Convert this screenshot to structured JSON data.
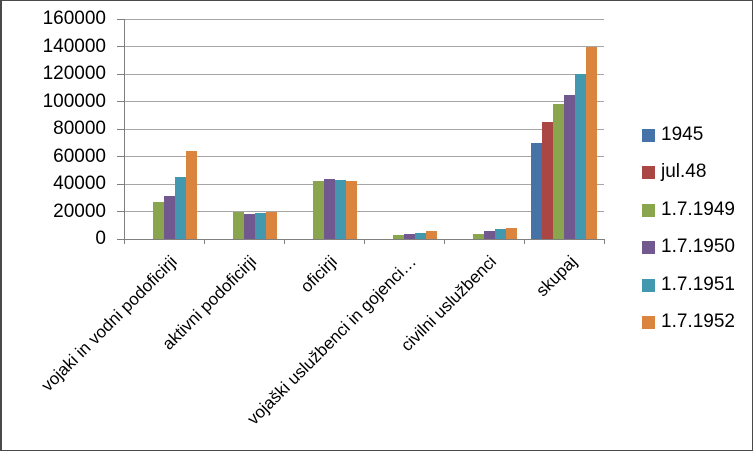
{
  "figure": {
    "background": "#ffffff",
    "border_color": "#4a4a4a"
  },
  "chart_data": {
    "type": "bar",
    "title": "",
    "categories": [
      "vojaki in vodni podoficirji",
      "aktivni podoficirji",
      "oficirji",
      "vojaški uslužbenci in gojenci…",
      "civilni uslužbenci",
      "skupaj"
    ],
    "series": [
      {
        "name": "1945",
        "color": "#4572A7",
        "values": [
          0,
          0,
          0,
          0,
          0,
          70000
        ]
      },
      {
        "name": "jul.48",
        "color": "#AA4643",
        "values": [
          0,
          0,
          0,
          0,
          0,
          85000
        ]
      },
      {
        "name": "1.7.1949",
        "color": "#89A54E",
        "values": [
          27000,
          20000,
          42000,
          3000,
          4000,
          98000
        ]
      },
      {
        "name": "1.7.1950",
        "color": "#71588F",
        "values": [
          31000,
          18000,
          44000,
          3500,
          6000,
          105000
        ]
      },
      {
        "name": "1.7.1951",
        "color": "#4198AF",
        "values": [
          45000,
          19000,
          43000,
          4500,
          7500,
          120000
        ]
      },
      {
        "name": "1.7.1952",
        "color": "#DB843D",
        "values": [
          64000,
          20000,
          42000,
          6000,
          8000,
          140000
        ]
      }
    ],
    "ylim": [
      0,
      160000
    ],
    "yticks": [
      0,
      20000,
      40000,
      60000,
      80000,
      100000,
      120000,
      140000,
      160000
    ],
    "xlabel": "",
    "ylabel": "",
    "grid": true,
    "legend_position": "right",
    "gridline_color": "#a6a6a6",
    "axis_color": "#7f7f7f"
  }
}
